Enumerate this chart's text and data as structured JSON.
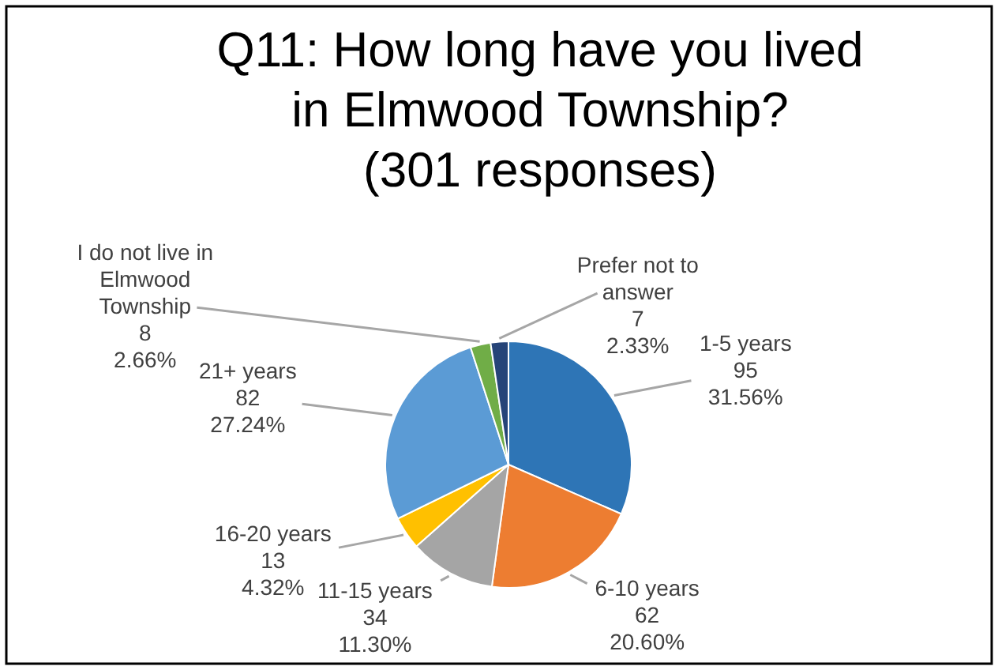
{
  "chart_data": {
    "type": "pie",
    "title": "Q11: How long have you lived\nin Elmwood Township?\n(301 responses)",
    "categories": [
      "1-5 years",
      "6-10 years",
      "11-15 years",
      "16-20 years",
      "21+ years",
      "I do not live in\nElmwood\nTownship",
      "Prefer not to\nanswer"
    ],
    "values": [
      95,
      62,
      34,
      13,
      82,
      8,
      7
    ],
    "value_labels": [
      "95\n31.56%",
      "62\n20.60%",
      "34\n11.30%",
      "13\n4.32%",
      "82\n27.24%",
      "8\n2.66%",
      "7\n2.33%"
    ],
    "colors": [
      "#2e75b6",
      "#ed7d31",
      "#a5a5a5",
      "#ffc000",
      "#5b9bd5",
      "#70ad47",
      "#264478"
    ],
    "data_labels": true
  }
}
